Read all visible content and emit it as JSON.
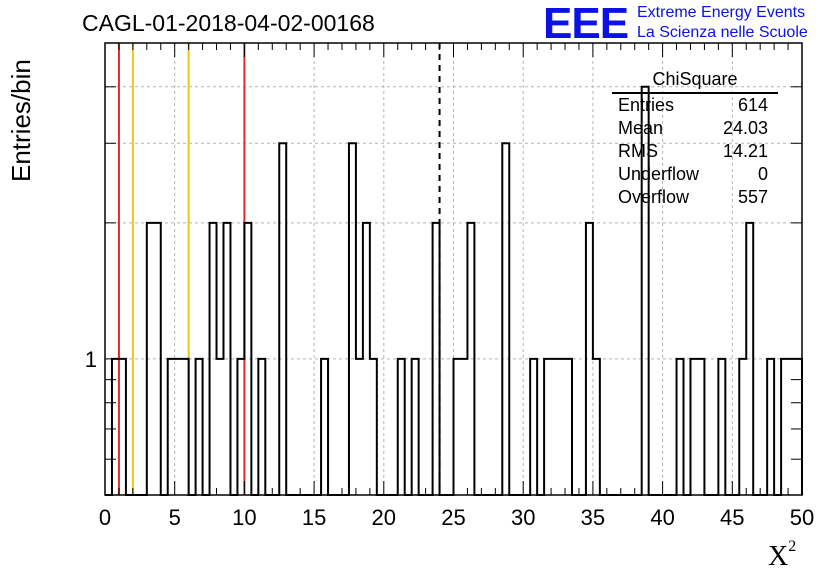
{
  "title": "CAGL-01-2018-04-02-00168",
  "logo": {
    "mark": "EEE",
    "line1": "Extreme Energy Events",
    "line2": "La Scienza nelle Scuole",
    "color": "#0c12e6"
  },
  "stats_box": {
    "title": "ChiSquare",
    "rows": [
      {
        "key": "Entries",
        "value": "614"
      },
      {
        "key": "Mean",
        "value": "24.03"
      },
      {
        "key": "RMS",
        "value": "14.21"
      },
      {
        "key": "Underflow",
        "value": "0"
      },
      {
        "key": "Overflow",
        "value": "557"
      }
    ]
  },
  "chart_data": {
    "type": "bar",
    "style": "step-histogram",
    "ylabel": "Entries/bin",
    "xlabel": "X",
    "xlabel_superscript": "2",
    "xlim": [
      0,
      50
    ],
    "ylim": [
      0.5,
      5
    ],
    "y_log_scale": true,
    "grid": true,
    "xticks": [
      0,
      5,
      10,
      15,
      20,
      25,
      30,
      35,
      40,
      45,
      50
    ],
    "ytick_labels": [
      "1"
    ],
    "bin_width": 0.5,
    "bins": [
      {
        "x0": 0.5,
        "x1": 1.5,
        "y": 1
      },
      {
        "x0": 3.0,
        "x1": 4.0,
        "y": 2
      },
      {
        "x0": 4.5,
        "x1": 5.0,
        "y": 1
      },
      {
        "x0": 5.0,
        "x1": 6.0,
        "y": 1
      },
      {
        "x0": 6.5,
        "x1": 7.0,
        "y": 1
      },
      {
        "x0": 7.5,
        "x1": 8.0,
        "y": 2
      },
      {
        "x0": 8.0,
        "x1": 8.5,
        "y": 1
      },
      {
        "x0": 8.5,
        "x1": 9.0,
        "y": 2
      },
      {
        "x0": 9.5,
        "x1": 10.0,
        "y": 1
      },
      {
        "x0": 10.0,
        "x1": 10.5,
        "y": 2
      },
      {
        "x0": 11.0,
        "x1": 11.5,
        "y": 1
      },
      {
        "x0": 12.5,
        "x1": 13.0,
        "y": 3
      },
      {
        "x0": 15.5,
        "x1": 16.0,
        "y": 1
      },
      {
        "x0": 17.5,
        "x1": 18.0,
        "y": 3
      },
      {
        "x0": 18.0,
        "x1": 18.5,
        "y": 1
      },
      {
        "x0": 18.5,
        "x1": 19.0,
        "y": 2
      },
      {
        "x0": 19.0,
        "x1": 19.5,
        "y": 1
      },
      {
        "x0": 21.0,
        "x1": 21.5,
        "y": 1
      },
      {
        "x0": 22.0,
        "x1": 22.5,
        "y": 1
      },
      {
        "x0": 23.5,
        "x1": 24.0,
        "y": 2
      },
      {
        "x0": 25.0,
        "x1": 26.0,
        "y": 1
      },
      {
        "x0": 26.0,
        "x1": 26.5,
        "y": 2
      },
      {
        "x0": 28.5,
        "x1": 29.0,
        "y": 3
      },
      {
        "x0": 30.5,
        "x1": 31.0,
        "y": 1
      },
      {
        "x0": 31.5,
        "x1": 33.5,
        "y": 1
      },
      {
        "x0": 34.5,
        "x1": 35.0,
        "y": 2
      },
      {
        "x0": 35.0,
        "x1": 35.5,
        "y": 1
      },
      {
        "x0": 38.5,
        "x1": 39.0,
        "y": 4
      },
      {
        "x0": 41.0,
        "x1": 41.5,
        "y": 1
      },
      {
        "x0": 42.0,
        "x1": 43.0,
        "y": 1
      },
      {
        "x0": 44.0,
        "x1": 44.5,
        "y": 1
      },
      {
        "x0": 45.5,
        "x1": 46.0,
        "y": 1
      },
      {
        "x0": 46.0,
        "x1": 46.5,
        "y": 2
      },
      {
        "x0": 47.5,
        "x1": 48.0,
        "y": 1
      },
      {
        "x0": 48.0,
        "x1": 48.5,
        "y": 0.5
      },
      {
        "x0": 48.5,
        "x1": 50.0,
        "y": 1
      }
    ],
    "vertical_lines": [
      {
        "x": 1.0,
        "color": "#e32b2b",
        "style": "solid"
      },
      {
        "x": 2.0,
        "color": "#f0c419",
        "style": "solid"
      },
      {
        "x": 6.0,
        "color": "#f0c419",
        "style": "solid"
      },
      {
        "x": 10.0,
        "color": "#e32b2b",
        "style": "solid"
      },
      {
        "x": 24.0,
        "color": "#000000",
        "style": "dashed"
      }
    ],
    "colors": {
      "histogram": "#000000",
      "grid": "#b4b4b4",
      "red_line": "#e32b2b",
      "yellow_line": "#f0c419"
    }
  }
}
